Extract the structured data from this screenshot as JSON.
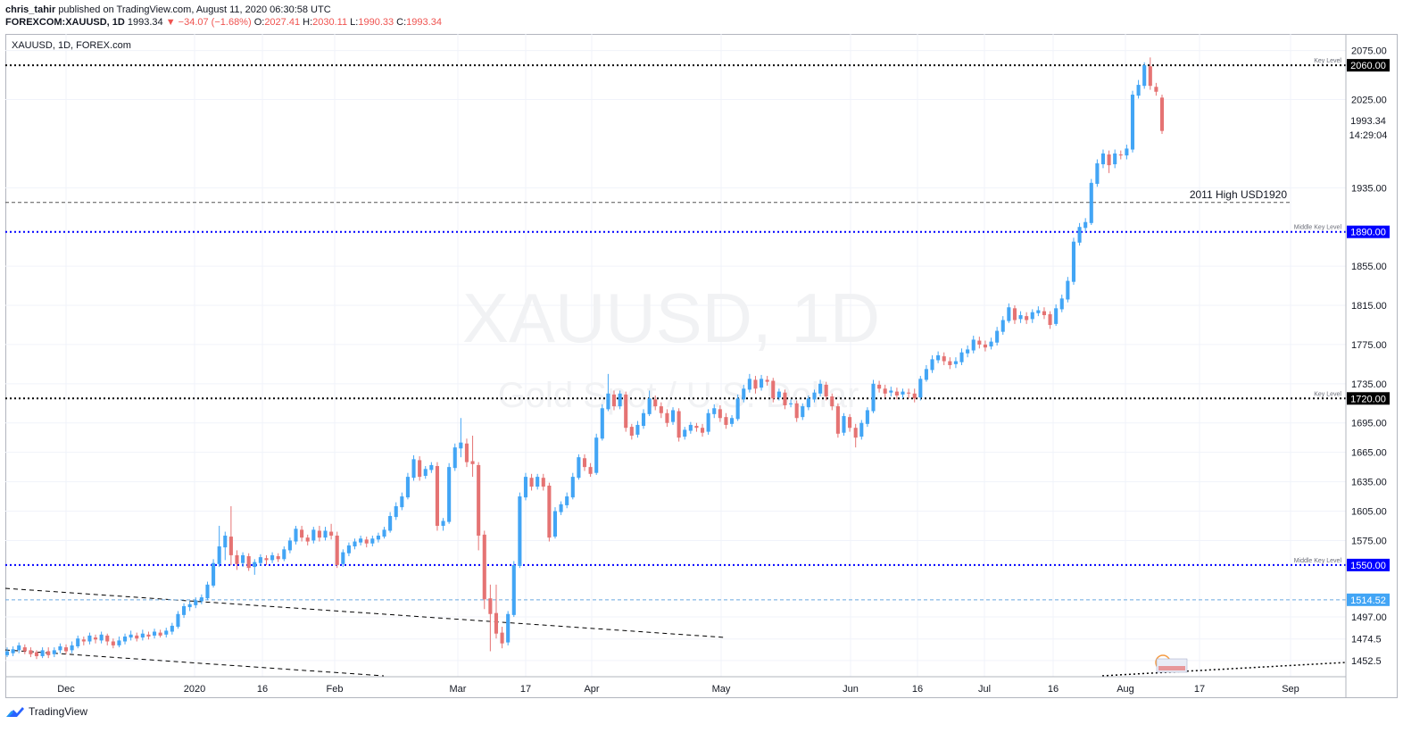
{
  "header": {
    "author": "chris_tahir",
    "published": "published on TradingView.com, August 11, 2020 06:30:58 UTC",
    "symbol": "FOREXCOM:XAUUSD, 1D",
    "last": "1993.34",
    "change": "▼ −34.07 (−1.68%)",
    "o_label": "O:",
    "o_value": "2027.41",
    "h_label": "H:",
    "h_value": "2030.11",
    "l_label": "L:",
    "l_value": "1990.33",
    "c_label": "C:",
    "c_value": "1993.34"
  },
  "chart_label": "XAUUSD, 1D, FOREX.com",
  "footer": {
    "brand": "TradingView"
  },
  "colors": {
    "up": "#42a5f5",
    "down": "#e57373",
    "blue_level": "#0000ff",
    "black_level": "#000000"
  },
  "chart_data": {
    "type": "candlestick",
    "watermark": {
      "symbol": "XAUUSD, 1D",
      "description": "Gold Spot / U.S. Dollar"
    },
    "y_axis": {
      "ticks": [
        2075,
        2025,
        1935,
        1855,
        1815,
        1775,
        1735,
        1695,
        1665,
        1635,
        1605,
        1575,
        1497,
        1474.5,
        1452.5
      ],
      "ylim": [
        1436,
        2092
      ]
    },
    "x_axis": {
      "labels": [
        "Dec",
        "2020",
        "16",
        "Feb",
        "Mar",
        "17",
        "Apr",
        "May",
        "Jun",
        "16",
        "Jul",
        "16",
        "Aug",
        "17",
        "Sep"
      ]
    },
    "levels": [
      {
        "price": 2060.0,
        "label": "2060.00",
        "note": "Key Level",
        "style": "black"
      },
      {
        "price": 1890.0,
        "label": "1890.00",
        "note": "Middle Key Level",
        "style": "blue"
      },
      {
        "price": 1720.0,
        "label": "1720.00",
        "note": "Key Level",
        "style": "black"
      },
      {
        "price": 1550.0,
        "label": "1550.00",
        "note": "Middle Key Level",
        "style": "blue"
      }
    ],
    "hline_2011": {
      "price": 1920,
      "text": "2011 High USD1920"
    },
    "last_price": {
      "label": "1993.34",
      "countdown": "14:29:04"
    },
    "hline_1514": {
      "label": "1514.52",
      "price": 1514.52
    },
    "series": {
      "name": "XAUUSD",
      "candles": [
        [
          1458,
          1462,
          1456,
          1466
        ],
        [
          1460,
          1464,
          1457,
          1467
        ],
        [
          1463,
          1468,
          1460,
          1471
        ],
        [
          1466,
          1462,
          1459,
          1469
        ],
        [
          1463,
          1459,
          1456,
          1466
        ],
        [
          1461,
          1457,
          1454,
          1463
        ],
        [
          1457,
          1463,
          1455,
          1466
        ],
        [
          1462,
          1458,
          1455,
          1466
        ],
        [
          1459,
          1463,
          1456,
          1466
        ],
        [
          1463,
          1467,
          1460,
          1470
        ],
        [
          1466,
          1462,
          1459,
          1469
        ],
        [
          1463,
          1468,
          1460,
          1472
        ],
        [
          1467,
          1475,
          1465,
          1478
        ],
        [
          1474,
          1472,
          1468,
          1477
        ],
        [
          1472,
          1478,
          1469,
          1481
        ],
        [
          1476,
          1474,
          1470,
          1479
        ],
        [
          1473,
          1479,
          1470,
          1482
        ],
        [
          1478,
          1472,
          1468,
          1480
        ],
        [
          1472,
          1468,
          1465,
          1475
        ],
        [
          1468,
          1473,
          1466,
          1477
        ],
        [
          1472,
          1477,
          1469,
          1480
        ],
        [
          1476,
          1479,
          1473,
          1483
        ],
        [
          1478,
          1475,
          1472,
          1481
        ],
        [
          1476,
          1480,
          1473,
          1484
        ],
        [
          1479,
          1477,
          1474,
          1482
        ],
        [
          1478,
          1482,
          1475,
          1485
        ],
        [
          1481,
          1478,
          1476,
          1484
        ],
        [
          1479,
          1483,
          1476,
          1486
        ],
        [
          1482,
          1488,
          1479,
          1491
        ],
        [
          1487,
          1500,
          1485,
          1503
        ],
        [
          1499,
          1508,
          1496,
          1511
        ],
        [
          1507,
          1510,
          1503,
          1513
        ],
        [
          1509,
          1514,
          1506,
          1517
        ],
        [
          1513,
          1517,
          1510,
          1520
        ],
        [
          1516,
          1530,
          1514,
          1533
        ],
        [
          1529,
          1552,
          1527,
          1556
        ],
        [
          1551,
          1569,
          1548,
          1590
        ],
        [
          1568,
          1580,
          1555,
          1584
        ],
        [
          1579,
          1560,
          1550,
          1610
        ],
        [
          1560,
          1551,
          1545,
          1565
        ],
        [
          1552,
          1560,
          1548,
          1563
        ],
        [
          1559,
          1547,
          1544,
          1562
        ],
        [
          1548,
          1553,
          1540,
          1556
        ],
        [
          1552,
          1558,
          1549,
          1561
        ],
        [
          1557,
          1555,
          1550,
          1560
        ],
        [
          1555,
          1560,
          1552,
          1563
        ],
        [
          1559,
          1556,
          1553,
          1562
        ],
        [
          1556,
          1566,
          1554,
          1569
        ],
        [
          1565,
          1575,
          1562,
          1578
        ],
        [
          1574,
          1587,
          1571,
          1590
        ],
        [
          1586,
          1578,
          1574,
          1590
        ],
        [
          1578,
          1574,
          1570,
          1581
        ],
        [
          1575,
          1586,
          1572,
          1589
        ],
        [
          1585,
          1578,
          1574,
          1590
        ],
        [
          1578,
          1585,
          1575,
          1589
        ],
        [
          1584,
          1580,
          1576,
          1592
        ],
        [
          1580,
          1550,
          1547,
          1584
        ],
        [
          1551,
          1563,
          1548,
          1566
        ],
        [
          1562,
          1570,
          1559,
          1573
        ],
        [
          1569,
          1574,
          1566,
          1577
        ],
        [
          1573,
          1577,
          1570,
          1580
        ],
        [
          1576,
          1572,
          1568,
          1579
        ],
        [
          1572,
          1577,
          1569,
          1580
        ],
        [
          1576,
          1580,
          1573,
          1583
        ],
        [
          1579,
          1586,
          1577,
          1589
        ],
        [
          1585,
          1600,
          1583,
          1604
        ],
        [
          1599,
          1610,
          1596,
          1614
        ],
        [
          1609,
          1620,
          1606,
          1624
        ],
        [
          1619,
          1640,
          1617,
          1644
        ],
        [
          1639,
          1658,
          1636,
          1662
        ],
        [
          1657,
          1640,
          1636,
          1661
        ],
        [
          1641,
          1648,
          1638,
          1651
        ],
        [
          1647,
          1652,
          1644,
          1655
        ],
        [
          1651,
          1590,
          1585,
          1655
        ],
        [
          1590,
          1595,
          1585,
          1598
        ],
        [
          1594,
          1650,
          1592,
          1654
        ],
        [
          1649,
          1670,
          1646,
          1674
        ],
        [
          1669,
          1675,
          1660,
          1700
        ],
        [
          1674,
          1655,
          1650,
          1679
        ],
        [
          1656,
          1653,
          1640,
          1682
        ],
        [
          1652,
          1580,
          1565,
          1655
        ],
        [
          1581,
          1515,
          1505,
          1585
        ],
        [
          1516,
          1500,
          1462,
          1530
        ],
        [
          1501,
          1480,
          1475,
          1530
        ],
        [
          1481,
          1470,
          1465,
          1487
        ],
        [
          1471,
          1500,
          1468,
          1503
        ],
        [
          1499,
          1550,
          1497,
          1554
        ],
        [
          1549,
          1620,
          1547,
          1624
        ],
        [
          1619,
          1640,
          1616,
          1644
        ],
        [
          1639,
          1630,
          1626,
          1643
        ],
        [
          1630,
          1640,
          1627,
          1643
        ],
        [
          1639,
          1630,
          1626,
          1643
        ],
        [
          1631,
          1578,
          1574,
          1634
        ],
        [
          1579,
          1605,
          1577,
          1609
        ],
        [
          1604,
          1612,
          1601,
          1615
        ],
        [
          1611,
          1620,
          1608,
          1624
        ],
        [
          1619,
          1640,
          1617,
          1644
        ],
        [
          1639,
          1660,
          1637,
          1663
        ],
        [
          1659,
          1650,
          1646,
          1663
        ],
        [
          1650,
          1643,
          1640,
          1654
        ],
        [
          1644,
          1680,
          1642,
          1684
        ],
        [
          1679,
          1710,
          1677,
          1714
        ],
        [
          1709,
          1725,
          1707,
          1745
        ],
        [
          1724,
          1712,
          1708,
          1728
        ],
        [
          1712,
          1725,
          1709,
          1728
        ],
        [
          1724,
          1690,
          1686,
          1727
        ],
        [
          1691,
          1682,
          1678,
          1694
        ],
        [
          1683,
          1693,
          1680,
          1697
        ],
        [
          1692,
          1705,
          1689,
          1709
        ],
        [
          1704,
          1720,
          1702,
          1728
        ],
        [
          1719,
          1712,
          1708,
          1723
        ],
        [
          1712,
          1705,
          1700,
          1716
        ],
        [
          1705,
          1695,
          1691,
          1709
        ],
        [
          1696,
          1708,
          1693,
          1711
        ],
        [
          1707,
          1680,
          1676,
          1710
        ],
        [
          1681,
          1688,
          1678,
          1691
        ],
        [
          1687,
          1693,
          1684,
          1696
        ],
        [
          1692,
          1690,
          1686,
          1695
        ],
        [
          1690,
          1685,
          1681,
          1694
        ],
        [
          1686,
          1705,
          1683,
          1709
        ],
        [
          1704,
          1710,
          1700,
          1714
        ],
        [
          1709,
          1700,
          1696,
          1713
        ],
        [
          1701,
          1693,
          1689,
          1705
        ],
        [
          1694,
          1700,
          1691,
          1703
        ],
        [
          1699,
          1720,
          1697,
          1724
        ],
        [
          1719,
          1730,
          1716,
          1734
        ],
        [
          1729,
          1740,
          1726,
          1745
        ],
        [
          1739,
          1730,
          1725,
          1743
        ],
        [
          1731,
          1740,
          1728,
          1744
        ],
        [
          1739,
          1737,
          1733,
          1743
        ],
        [
          1738,
          1720,
          1716,
          1741
        ],
        [
          1721,
          1727,
          1718,
          1730
        ],
        [
          1726,
          1713,
          1709,
          1729
        ],
        [
          1714,
          1715,
          1711,
          1719
        ],
        [
          1715,
          1700,
          1696,
          1718
        ],
        [
          1701,
          1712,
          1698,
          1715
        ],
        [
          1711,
          1720,
          1708,
          1723
        ],
        [
          1719,
          1726,
          1716,
          1729
        ],
        [
          1725,
          1735,
          1722,
          1739
        ],
        [
          1734,
          1722,
          1718,
          1737
        ],
        [
          1722,
          1712,
          1708,
          1725
        ],
        [
          1712,
          1684,
          1680,
          1715
        ],
        [
          1685,
          1702,
          1682,
          1705
        ],
        [
          1701,
          1690,
          1686,
          1704
        ],
        [
          1690,
          1680,
          1670,
          1694
        ],
        [
          1681,
          1695,
          1678,
          1698
        ],
        [
          1694,
          1708,
          1691,
          1711
        ],
        [
          1707,
          1735,
          1705,
          1739
        ],
        [
          1734,
          1730,
          1726,
          1738
        ],
        [
          1730,
          1725,
          1721,
          1734
        ],
        [
          1726,
          1728,
          1722,
          1732
        ],
        [
          1727,
          1723,
          1719,
          1731
        ],
        [
          1724,
          1727,
          1720,
          1730
        ],
        [
          1726,
          1725,
          1720,
          1730
        ],
        [
          1725,
          1720,
          1716,
          1730
        ],
        [
          1721,
          1740,
          1718,
          1743
        ],
        [
          1739,
          1750,
          1737,
          1754
        ],
        [
          1749,
          1760,
          1746,
          1764
        ],
        [
          1759,
          1764,
          1756,
          1768
        ],
        [
          1763,
          1758,
          1754,
          1767
        ],
        [
          1758,
          1754,
          1750,
          1762
        ],
        [
          1755,
          1758,
          1751,
          1762
        ],
        [
          1757,
          1767,
          1754,
          1771
        ],
        [
          1766,
          1770,
          1762,
          1774
        ],
        [
          1769,
          1780,
          1766,
          1784
        ],
        [
          1779,
          1775,
          1771,
          1783
        ],
        [
          1775,
          1772,
          1768,
          1779
        ],
        [
          1773,
          1778,
          1770,
          1782
        ],
        [
          1777,
          1789,
          1774,
          1793
        ],
        [
          1788,
          1800,
          1785,
          1804
        ],
        [
          1799,
          1813,
          1797,
          1817
        ],
        [
          1812,
          1800,
          1796,
          1815
        ],
        [
          1801,
          1805,
          1797,
          1809
        ],
        [
          1804,
          1800,
          1796,
          1808
        ],
        [
          1801,
          1808,
          1797,
          1811
        ],
        [
          1807,
          1810,
          1804,
          1814
        ],
        [
          1809,
          1805,
          1801,
          1813
        ],
        [
          1806,
          1795,
          1791,
          1809
        ],
        [
          1796,
          1812,
          1794,
          1816
        ],
        [
          1811,
          1822,
          1808,
          1826
        ],
        [
          1821,
          1840,
          1818,
          1844
        ],
        [
          1839,
          1880,
          1836,
          1884
        ],
        [
          1879,
          1895,
          1876,
          1899
        ],
        [
          1894,
          1900,
          1890,
          1904
        ],
        [
          1899,
          1940,
          1897,
          1944
        ],
        [
          1939,
          1960,
          1936,
          1964
        ],
        [
          1959,
          1970,
          1955,
          1974
        ],
        [
          1969,
          1958,
          1950,
          1973
        ],
        [
          1959,
          1970,
          1955,
          1974
        ],
        [
          1969,
          1968,
          1964,
          1973
        ],
        [
          1968,
          1975,
          1964,
          1979
        ],
        [
          1974,
          2030,
          1971,
          2034
        ],
        [
          2029,
          2040,
          2026,
          2045
        ],
        [
          2039,
          2060,
          2036,
          2063
        ],
        [
          2059,
          2039,
          2035,
          2068
        ],
        [
          2038,
          2033,
          2029,
          2042
        ],
        [
          2027,
          1993,
          1990,
          2030
        ]
      ]
    }
  }
}
